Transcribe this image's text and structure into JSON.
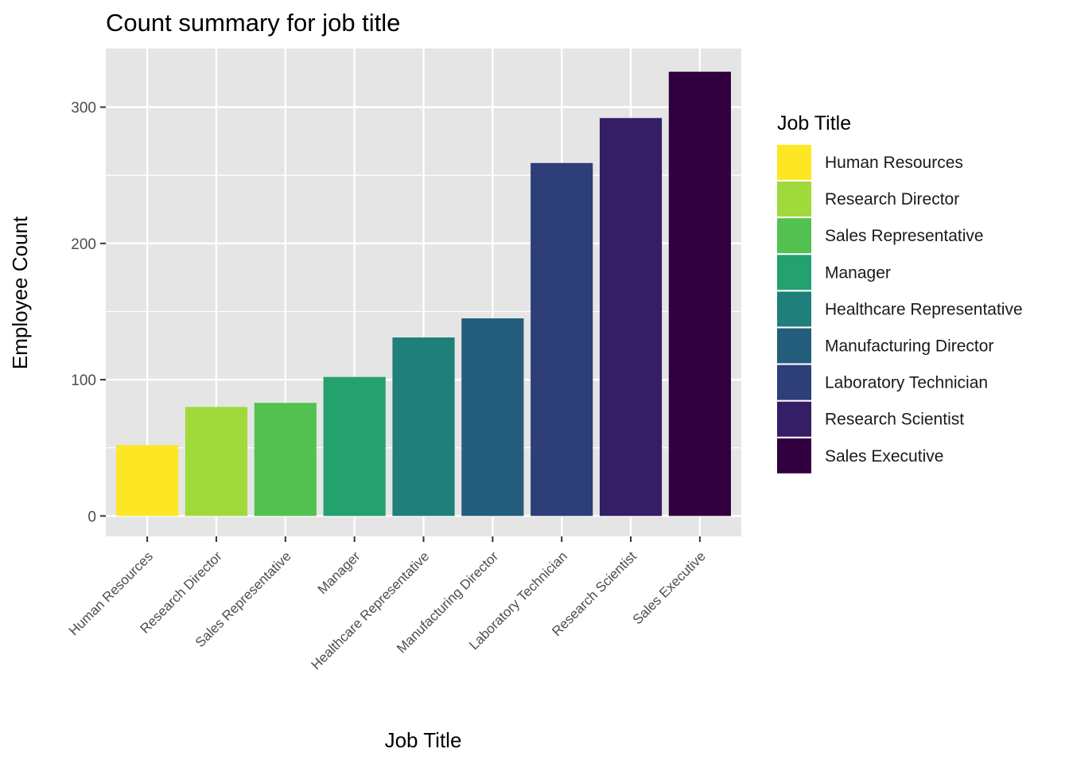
{
  "chart_data": {
    "type": "bar",
    "title": "Count summary for job title",
    "xlabel": "Job Title",
    "ylabel": "Employee Count",
    "categories": [
      "Human Resources",
      "Research Director",
      "Sales Representative",
      "Manager",
      "Healthcare Representative",
      "Manufacturing Director",
      "Laboratory Technician",
      "Research Scientist",
      "Sales Executive"
    ],
    "values": [
      52,
      80,
      83,
      102,
      131,
      145,
      259,
      292,
      326
    ],
    "colors": [
      "#fde725",
      "#a0da39",
      "#4ac16d",
      "#1fa187",
      "#277f8e",
      "#365c8d",
      "#46327e",
      "#440154",
      "#440154"
    ],
    "bar_colors": [
      "#fde725",
      "#9fda3a",
      "#52c150",
      "#25a06f",
      "#1f7f7a",
      "#245e7c",
      "#2d3e78",
      "#341e66",
      "#320040"
    ],
    "ylim": [
      -15,
      343
    ],
    "yticks": [
      0,
      100,
      200,
      300
    ],
    "grid": true,
    "legend": {
      "title": "Job Title",
      "placement": "right",
      "entries": [
        "Human Resources",
        "Research Director",
        "Sales Representative",
        "Manager",
        "Healthcare Representative",
        "Manufacturing Director",
        "Laboratory Technician",
        "Research Scientist",
        "Sales Executive"
      ]
    },
    "panel_background": "#e5e5e5",
    "grid_color": "#ffffff"
  }
}
